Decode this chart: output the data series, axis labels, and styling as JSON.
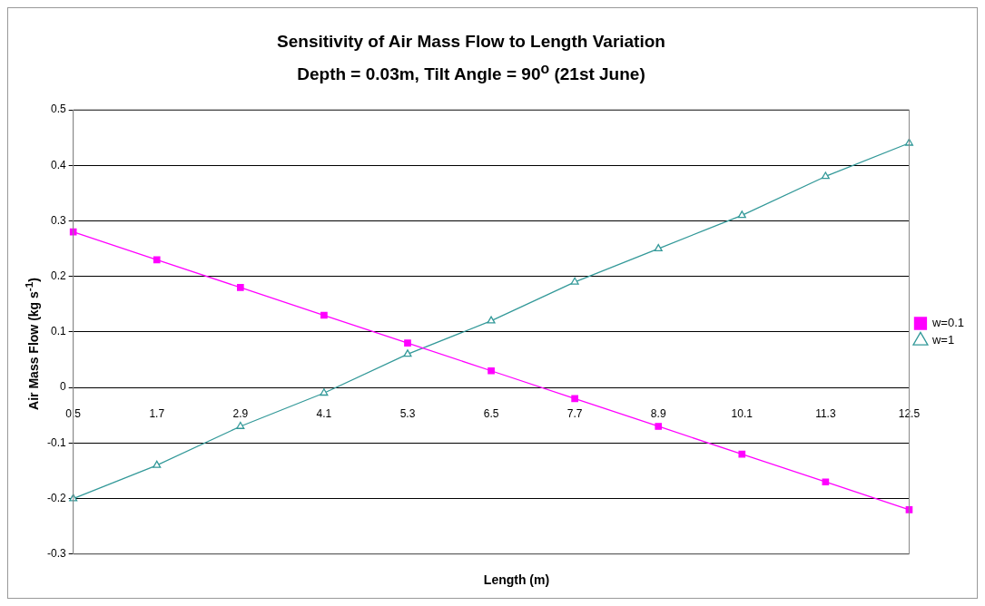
{
  "chart_data": {
    "type": "line",
    "title": "Sensitivity of Air Mass Flow to Length Variation",
    "subtitle": "Depth = 0.03m, Tilt Angle = 90$^{o}$ (21st June)",
    "xlabel": "Length (m)",
    "ylabel": "Air Mass Flow (kg s$^{-1}$)",
    "categories": [
      "0.5",
      "1.7",
      "2.9",
      "4.1",
      "5.3",
      "6.5",
      "7.7",
      "8.9",
      "10.1",
      "11.3",
      "12.5"
    ],
    "series": [
      {
        "name": "w=0.1",
        "color": "#ff00ff",
        "marker": "square",
        "values": [
          0.28,
          0.23,
          0.18,
          0.13,
          0.08,
          0.03,
          -0.02,
          -0.07,
          -0.12,
          -0.17,
          -0.22
        ]
      },
      {
        "name": "w=1",
        "color": "#339999",
        "marker": "triangle",
        "values": [
          -0.2,
          -0.14,
          -0.07,
          -0.01,
          0.06,
          0.12,
          0.19,
          0.25,
          0.31,
          0.38,
          0.44
        ]
      }
    ],
    "ylim": [
      -0.3,
      0.5
    ],
    "yticks": [
      -0.3,
      -0.2,
      -0.1,
      0,
      0.1,
      0.2,
      0.3,
      0.4,
      0.5
    ],
    "grid": "y",
    "legend": "right",
    "line_style": "solid"
  }
}
